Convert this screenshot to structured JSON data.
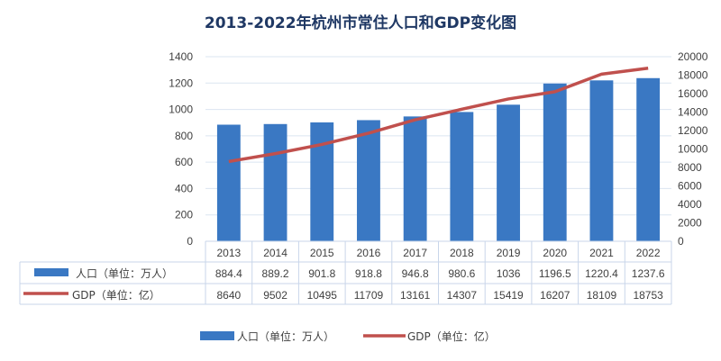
{
  "chart_data": {
    "type": "bar+line",
    "title": "2013-2022年杭州市常住人口和GDP变化图",
    "categories": [
      "2013",
      "2014",
      "2015",
      "2016",
      "2017",
      "2018",
      "2019",
      "2020",
      "2021",
      "2022"
    ],
    "series": [
      {
        "name": "人口（单位：万人）",
        "type": "bar",
        "axis": "left",
        "color": "#3a78c3",
        "values": [
          884.4,
          889.2,
          901.8,
          918.8,
          946.8,
          980.6,
          1036,
          1196.5,
          1220.4,
          1237.6
        ],
        "labels": [
          "884.4",
          "889.2",
          "901.8",
          "918.8",
          "946.8",
          "980.6",
          "1036",
          "1196.5",
          "1220.4",
          "1237.6"
        ]
      },
      {
        "name": "GDP（单位：亿）",
        "type": "line",
        "axis": "right",
        "color": "#c0504d",
        "values": [
          8640,
          9502,
          10495,
          11709,
          13161,
          14307,
          15419,
          16207,
          18109,
          18753
        ],
        "labels": [
          "8640",
          "9502",
          "10495",
          "11709",
          "13161",
          "14307",
          "15419",
          "16207",
          "18109",
          "18753"
        ]
      }
    ],
    "left_axis": {
      "range": [
        0,
        1400
      ],
      "ticks": [
        "0",
        "200",
        "400",
        "600",
        "800",
        "1000",
        "1200",
        "1400"
      ]
    },
    "right_axis": {
      "range": [
        0,
        20000
      ],
      "ticks": [
        "0",
        "2000",
        "4000",
        "6000",
        "8000",
        "10000",
        "12000",
        "14000",
        "16000",
        "18000",
        "20000"
      ]
    },
    "grid": true,
    "data_table": true,
    "legend_position": "bottom"
  }
}
